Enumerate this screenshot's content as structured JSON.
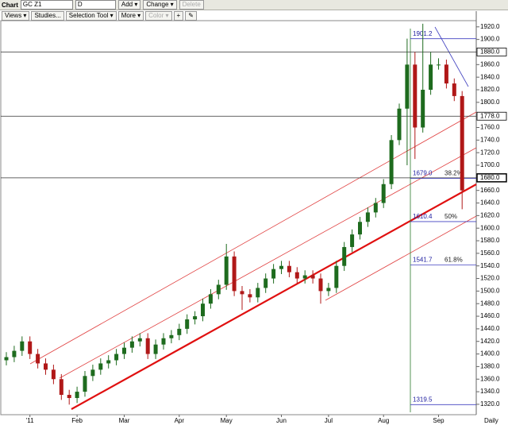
{
  "toolbar": {
    "chart_label": "Chart",
    "symbol": "GC Z1",
    "period": "D",
    "buttons": [
      "Add ▾",
      "Change ▾",
      "Delete",
      "Views ▾",
      "Studies...",
      "Selection Tool ▾",
      "More ▾",
      "Color ▾",
      "+",
      "✎"
    ]
  },
  "chart_data": {
    "type": "candlestick",
    "frequency_label": "Daily",
    "categories": [
      null,
      null,
      null,
      "'11",
      null,
      null,
      null,
      null,
      null,
      "Feb",
      null,
      null,
      null,
      null,
      null,
      "Mar",
      null,
      null,
      null,
      null,
      null,
      null,
      "Apr",
      null,
      null,
      null,
      null,
      null,
      "May",
      null,
      null,
      null,
      null,
      null,
      null,
      "Jun",
      null,
      null,
      null,
      null,
      null,
      "Jul",
      null,
      null,
      null,
      null,
      null,
      null,
      "Aug",
      null,
      null,
      null,
      null,
      null,
      null,
      "Sep",
      null,
      null,
      null
    ],
    "open": [
      1390,
      1395,
      1405,
      1420,
      1400,
      1385,
      1375,
      1360,
      1335,
      1330,
      1340,
      1365,
      1375,
      1385,
      1390,
      1400,
      1410,
      1420,
      1425,
      1400,
      1415,
      1425,
      1430,
      1440,
      1455,
      1460,
      1480,
      1495,
      1510,
      1555,
      1500,
      1495,
      1490,
      1505,
      1520,
      1535,
      1540,
      1530,
      1520,
      1525,
      1520,
      1500,
      1505,
      1540,
      1570,
      1590,
      1610,
      1625,
      1640,
      1670,
      1740,
      1790,
      1860,
      1760,
      1820,
      1860,
      1860,
      1830,
      1810
    ],
    "high": [
      1403,
      1413,
      1428,
      1428,
      1408,
      1393,
      1383,
      1368,
      1343,
      1348,
      1373,
      1383,
      1393,
      1398,
      1408,
      1418,
      1428,
      1433,
      1433,
      1423,
      1433,
      1438,
      1448,
      1463,
      1468,
      1488,
      1503,
      1518,
      1575,
      1563,
      1508,
      1503,
      1513,
      1528,
      1543,
      1548,
      1548,
      1538,
      1533,
      1533,
      1528,
      1513,
      1548,
      1578,
      1598,
      1618,
      1633,
      1648,
      1678,
      1748,
      1798,
      1901.2,
      1880,
      1925,
      1880,
      1870,
      1868,
      1838,
      1818
    ],
    "low": [
      1382,
      1387,
      1397,
      1392,
      1377,
      1367,
      1352,
      1327,
      1319.5,
      1322,
      1332,
      1357,
      1367,
      1377,
      1382,
      1392,
      1402,
      1412,
      1392,
      1392,
      1407,
      1417,
      1422,
      1432,
      1447,
      1452,
      1472,
      1487,
      1502,
      1492,
      1470,
      1482,
      1482,
      1497,
      1512,
      1527,
      1522,
      1512,
      1512,
      1512,
      1480,
      1492,
      1497,
      1532,
      1562,
      1582,
      1602,
      1617,
      1632,
      1662,
      1732,
      1700,
      1710,
      1752,
      1812,
      1852,
      1822,
      1802,
      1630
    ],
    "close": [
      1395,
      1405,
      1420,
      1400,
      1385,
      1375,
      1360,
      1335,
      1330,
      1340,
      1365,
      1375,
      1385,
      1390,
      1400,
      1410,
      1420,
      1425,
      1400,
      1415,
      1425,
      1430,
      1440,
      1455,
      1460,
      1480,
      1495,
      1510,
      1555,
      1500,
      1495,
      1490,
      1505,
      1520,
      1535,
      1540,
      1530,
      1520,
      1525,
      1520,
      1500,
      1505,
      1540,
      1570,
      1590,
      1610,
      1625,
      1640,
      1670,
      1740,
      1790,
      1860,
      1760,
      1820,
      1860,
      1860,
      1830,
      1810,
      1660
    ],
    "up_color": "#1e6b1e",
    "down_color": "#b01818",
    "ylim": [
      1306,
      1945
    ],
    "yticks": [
      {
        "value": 1320,
        "label": "1320.0"
      },
      {
        "value": 1340,
        "label": "1340.0"
      },
      {
        "value": 1360,
        "label": "1360.0"
      },
      {
        "value": 1380,
        "label": "1380.0"
      },
      {
        "value": 1400,
        "label": "1400.0"
      },
      {
        "value": 1420,
        "label": "1420.0"
      },
      {
        "value": 1440,
        "label": "1440.0"
      },
      {
        "value": 1460,
        "label": "1460.0"
      },
      {
        "value": 1480,
        "label": "1480.0"
      },
      {
        "value": 1500,
        "label": "1500.0"
      },
      {
        "value": 1520,
        "label": "1520.0"
      },
      {
        "value": 1540,
        "label": "1540.0"
      },
      {
        "value": 1560,
        "label": "1560.0"
      },
      {
        "value": 1580,
        "label": "1580.0"
      },
      {
        "value": 1600,
        "label": "1600.0"
      },
      {
        "value": 1620,
        "label": "1620.0"
      },
      {
        "value": 1640,
        "label": "1640.0"
      },
      {
        "value": 1660,
        "label": "1660.0"
      },
      {
        "value": 1680,
        "label": "1680.0"
      },
      {
        "value": 1700,
        "label": "1700.0"
      },
      {
        "value": 1720,
        "label": "1720.0"
      },
      {
        "value": 1740,
        "label": "1740.0"
      },
      {
        "value": 1760,
        "label": "1760.0"
      },
      {
        "value": 1780,
        "label": "1780.0"
      },
      {
        "value": 1800,
        "label": "1800.0"
      },
      {
        "value": 1820,
        "label": "1820.0"
      },
      {
        "value": 1840,
        "label": "1840.0"
      },
      {
        "value": 1860,
        "label": "1860.0"
      },
      {
        "value": 1880,
        "label": "1880.0"
      },
      {
        "value": 1900,
        "label": "1900.0"
      },
      {
        "value": 1920,
        "label": "1920.0"
      }
    ],
    "levels": [
      {
        "value": 1880,
        "label": "1880.0"
      },
      {
        "value": 1778,
        "label": "1778.0"
      },
      {
        "value": 1680,
        "label": "1680.0"
      }
    ],
    "fib_levels": [
      {
        "value": 1901.2,
        "label": "1901.2"
      },
      {
        "value": 1679.0,
        "label": "1679.0",
        "percent": "38.2%"
      },
      {
        "value": 1610.4,
        "label": "1610.4",
        "percent": "50%"
      },
      {
        "value": 1541.7,
        "label": "1541.7",
        "percent": "61.8%"
      },
      {
        "value": 1319.5,
        "label": "1319.5"
      }
    ]
  }
}
